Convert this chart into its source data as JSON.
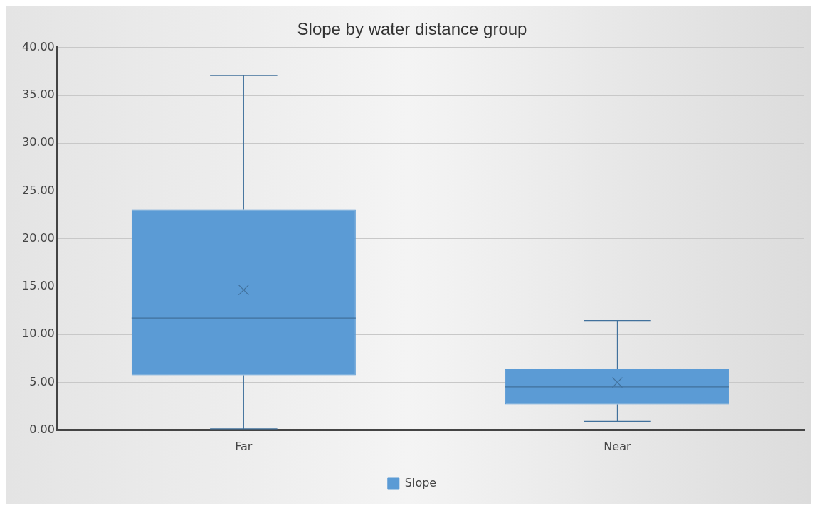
{
  "chart_data": {
    "type": "box",
    "title": "Slope by water distance group",
    "categories": [
      "Far",
      "Near"
    ],
    "series": [
      {
        "name": "Slope",
        "color": "#5b9bd5",
        "boxes": [
          {
            "low": 0.14,
            "q1": 5.75,
            "median": 11.73,
            "q3": 23.07,
            "high": 37.07,
            "mean": 14.66
          },
          {
            "low": 0.93,
            "q1": 2.69,
            "median": 4.53,
            "q3": 6.37,
            "high": 11.46,
            "mean": 5.0
          }
        ]
      }
    ],
    "ylim": [
      0,
      40
    ],
    "yticks": [
      {
        "value": 0,
        "label": "0.00"
      },
      {
        "value": 5,
        "label": "5.00"
      },
      {
        "value": 10,
        "label": "10.00"
      },
      {
        "value": 15,
        "label": "15.00"
      },
      {
        "value": 20,
        "label": "20.00"
      },
      {
        "value": 25,
        "label": "25.00"
      },
      {
        "value": 30,
        "label": "30.00"
      },
      {
        "value": 35,
        "label": "35.00"
      },
      {
        "value": 40,
        "label": "40.00"
      }
    ],
    "grid": "y",
    "legend": "bottom",
    "marker": "cross"
  }
}
